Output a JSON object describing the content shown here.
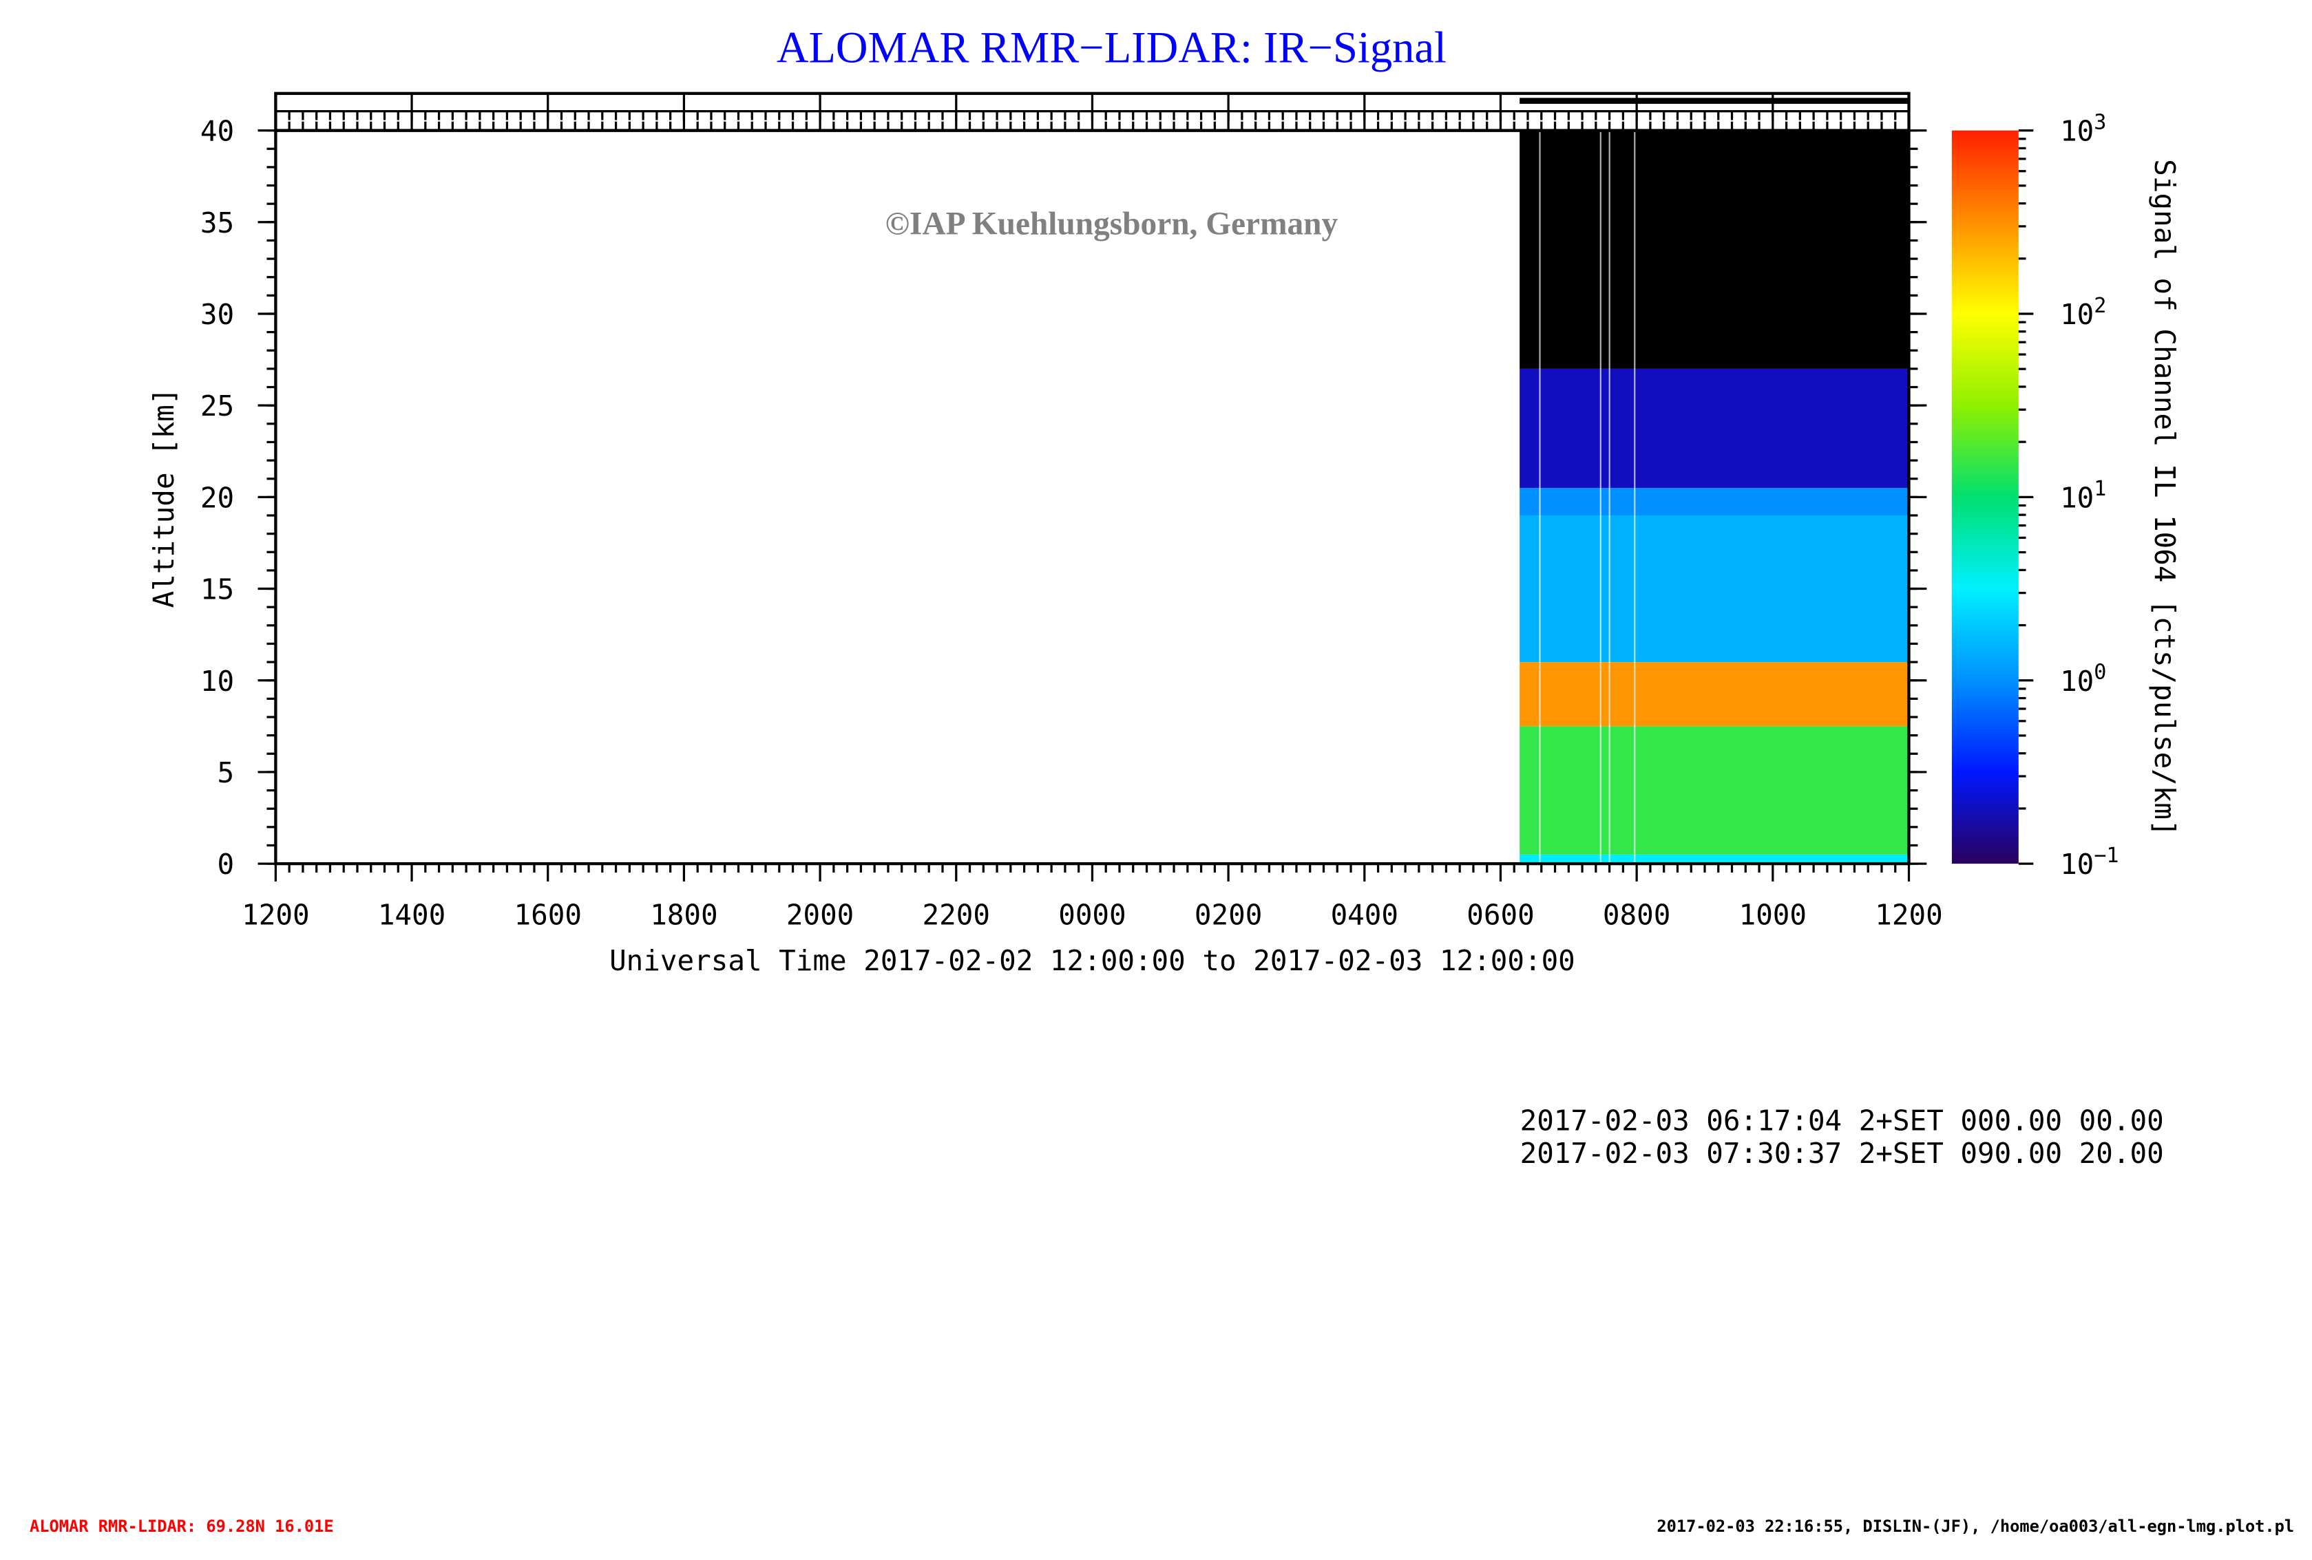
{
  "chart_data": {
    "type": "heatmap",
    "title": "ALOMAR RMR−LIDAR: IR−Signal",
    "watermark": "©IAP Kuehlungsborn, Germany",
    "x_label": "Universal Time 2017-02-02 12:00:00 to 2017-02-03 12:00:00",
    "y_label": "Altitude [km]",
    "colorbar_label": "Signal of Channel IL 1064 [cts/pulse/km]",
    "xlim": [
      0,
      24
    ],
    "xticks": [
      {
        "value": 0,
        "label": "1200"
      },
      {
        "value": 2,
        "label": "1400"
      },
      {
        "value": 4,
        "label": "1600"
      },
      {
        "value": 6,
        "label": "1800"
      },
      {
        "value": 8,
        "label": "2000"
      },
      {
        "value": 10,
        "label": "2200"
      },
      {
        "value": 12,
        "label": "0000"
      },
      {
        "value": 14,
        "label": "0200"
      },
      {
        "value": 16,
        "label": "0400"
      },
      {
        "value": 18,
        "label": "0600"
      },
      {
        "value": 20,
        "label": "0800"
      },
      {
        "value": 22,
        "label": "1000"
      },
      {
        "value": 24,
        "label": "1200"
      }
    ],
    "ylim": [
      0,
      40
    ],
    "yticks": [
      0,
      5,
      10,
      15,
      20,
      25,
      30,
      35,
      40
    ],
    "clim": [
      0.1,
      1000
    ],
    "log_color": true,
    "cticks": [
      {
        "value": 0.1,
        "label": "10",
        "exponent": "−1"
      },
      {
        "value": 1,
        "label": "10",
        "exponent": "0"
      },
      {
        "value": 10,
        "label": "10",
        "exponent": "1"
      },
      {
        "value": 100,
        "label": "10",
        "exponent": "2"
      },
      {
        "value": 1000,
        "label": "10",
        "exponent": "3"
      }
    ],
    "colormap": [
      "#2a005e",
      "#0018ff",
      "#0090ff",
      "#00f0ff",
      "#00e070",
      "#90f000",
      "#ffff00",
      "#ff9000",
      "#ff2000"
    ],
    "below_color": "#000000",
    "data_xlim": [
      18.28,
      24
    ],
    "bands": [
      {
        "ylim": [
          0,
          0.5
        ],
        "value": 3
      },
      {
        "ylim": [
          0.5,
          7.5
        ],
        "value": 15
      },
      {
        "ylim": [
          7.5,
          11
        ],
        "value": 300
      },
      {
        "ylim": [
          11,
          19
        ],
        "value": 1.5
      },
      {
        "ylim": [
          19,
          20.5
        ],
        "value": 1
      },
      {
        "ylim": [
          20.5,
          27
        ],
        "value": 0.2
      },
      {
        "ylim": [
          27,
          40
        ],
        "value": 0.05
      }
    ],
    "notes": [
      "2017-02-03 06:17:04 2+SET 000.00 00.00",
      "2017-02-03 07:30:37 2+SET 090.00 20.00"
    ],
    "footer_left": "ALOMAR RMR-LIDAR: 69.28N 16.01E",
    "footer_right": "2017-02-03 22:16:55, DISLIN-(JF), /home/oa003/all-egn-lmg.plot.pl"
  }
}
